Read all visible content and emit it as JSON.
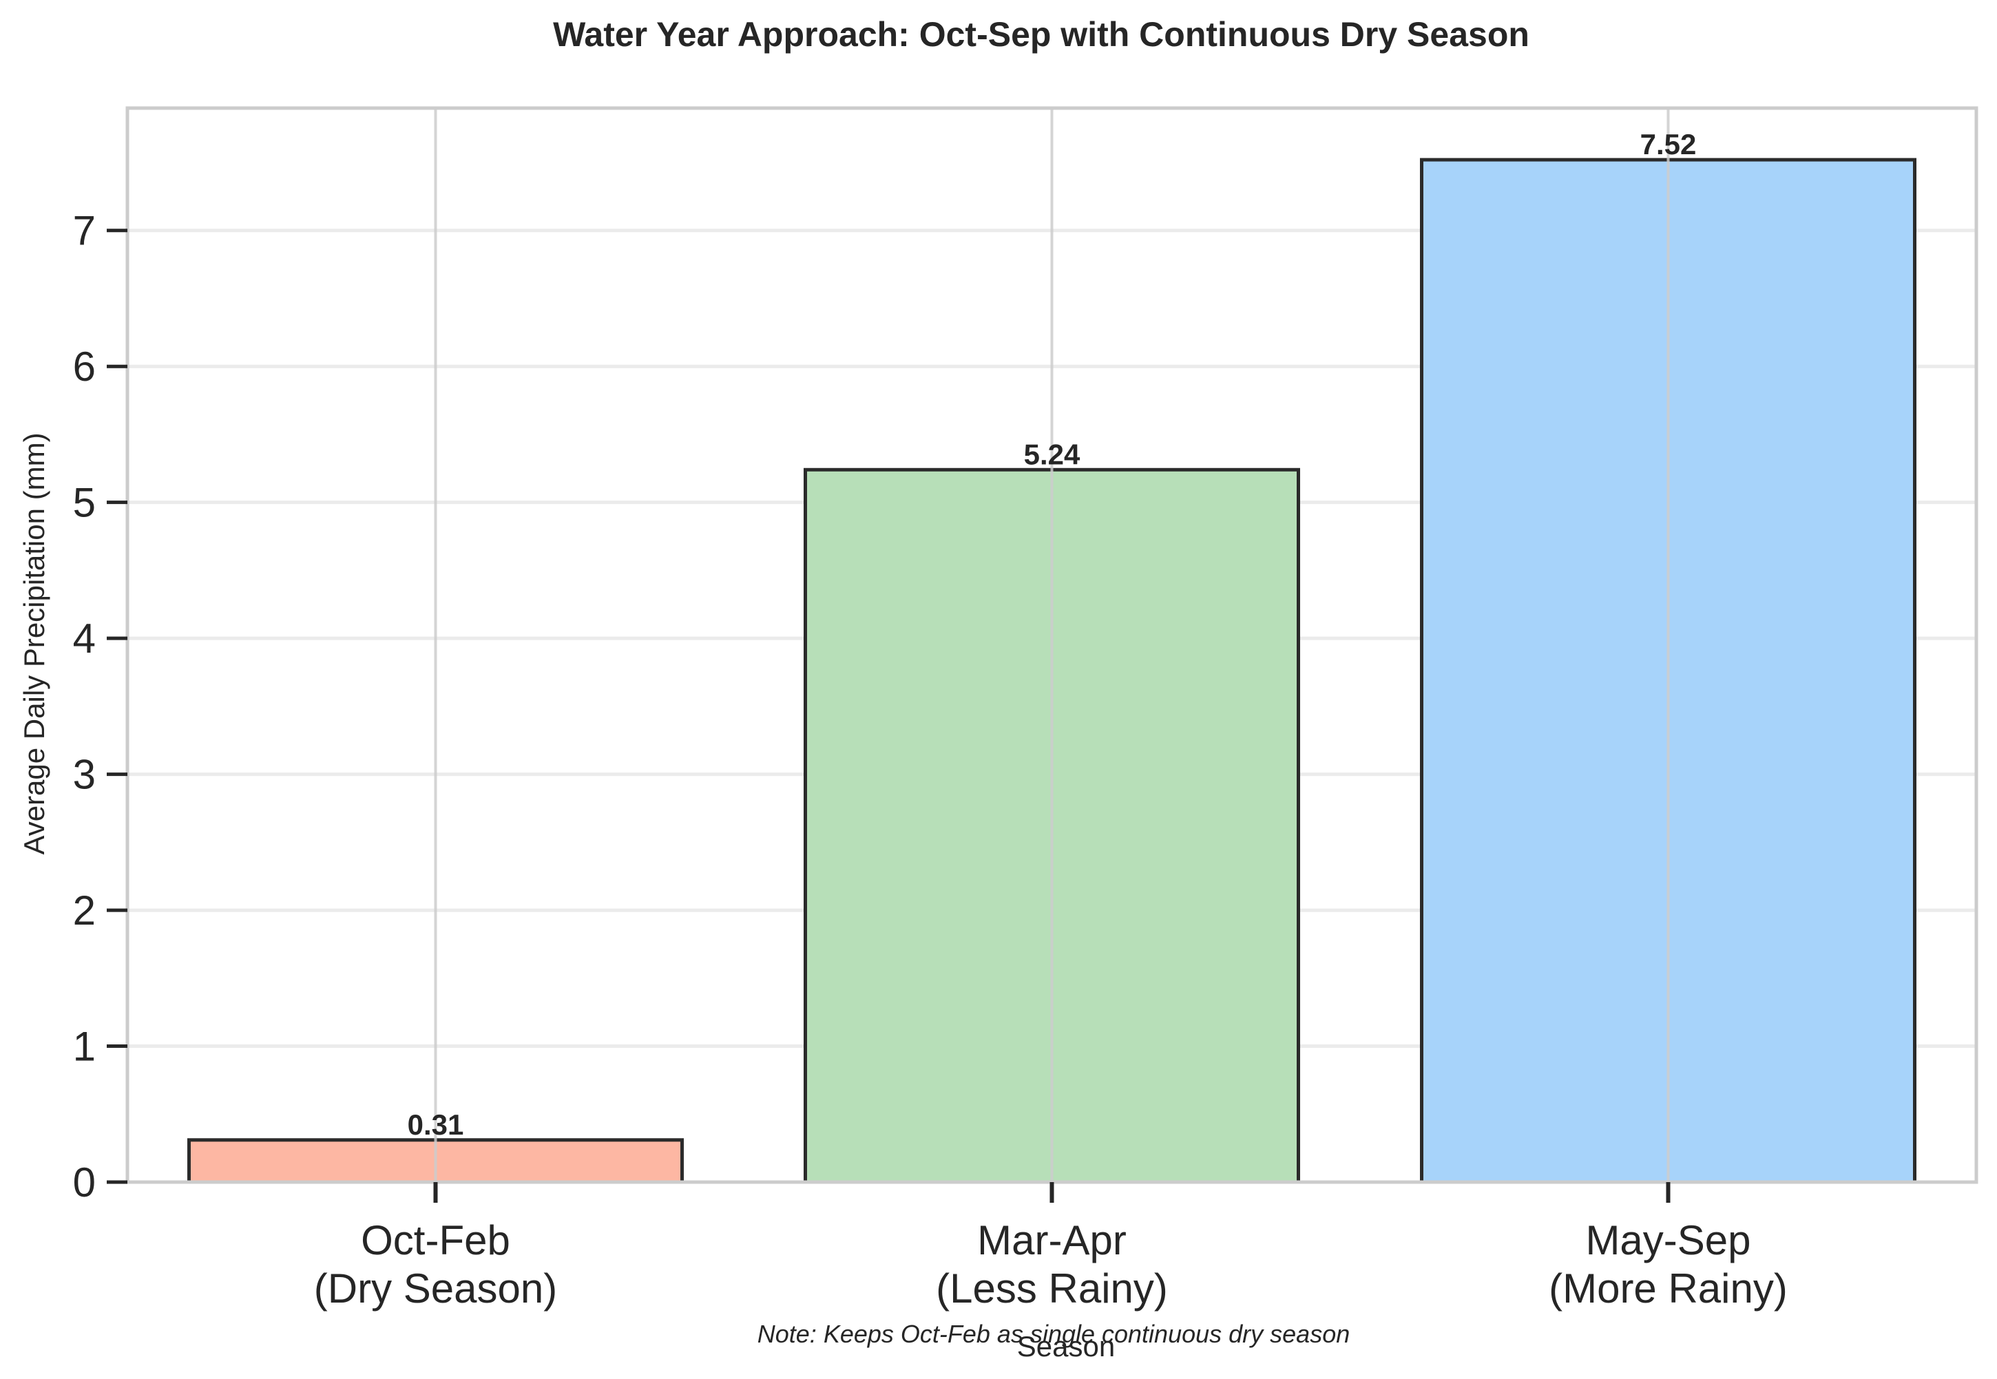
{
  "chart_data": {
    "type": "bar",
    "title": "Water Year Approach: Oct-Sep with Continuous Dry Season",
    "xlabel": "Season",
    "ylabel": "Average Daily Precipitation (mm)",
    "categories": [
      [
        "Oct-Feb",
        "(Dry Season)"
      ],
      [
        "Mar-Apr",
        "(Less Rainy)"
      ],
      [
        "May-Sep",
        "(More Rainy)"
      ]
    ],
    "values": [
      0.31,
      5.24,
      7.52
    ],
    "value_labels": [
      "0.31",
      "5.24",
      "7.52"
    ],
    "colors": [
      "#fdb7a3",
      "#b7dfb8",
      "#a7d3fa"
    ],
    "edge_color": "#2b2b2b",
    "ylim": [
      0,
      7.9
    ],
    "yticks": [
      0,
      1,
      2,
      3,
      4,
      5,
      6,
      7
    ],
    "grid": true,
    "note": "Note: Keeps Oct-Feb as single continuous dry season"
  }
}
